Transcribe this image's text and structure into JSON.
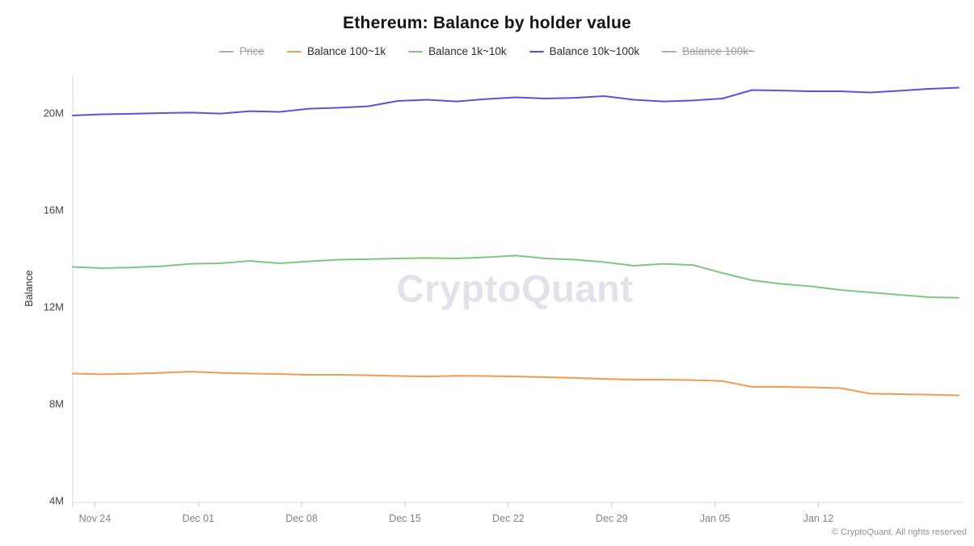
{
  "header": {
    "title": "Ethereum: Balance by holder value"
  },
  "legend": {
    "items": [
      {
        "label": "Price",
        "color": "#a7abb7",
        "disabled": true
      },
      {
        "label": "Balance 100~1k",
        "color": "#f19a54",
        "disabled": false
      },
      {
        "label": "Balance 1k~10k",
        "color": "#7dc87d",
        "disabled": false
      },
      {
        "label": "Balance 10k~100k",
        "color": "#5b50e0",
        "disabled": false
      },
      {
        "label": "Balance 100k~",
        "color": "#a7abb7",
        "disabled": true
      }
    ]
  },
  "watermark": {
    "text": "CryptoQuant"
  },
  "footer": {
    "text": "© CryptoQuant. All rights reserved"
  },
  "chart_data": {
    "type": "line",
    "title": "Ethereum: Balance by holder value",
    "ylabel": "Balance",
    "value_unit": "millions",
    "ylim": [
      3.9,
      21.5
    ],
    "y_ticks": [
      20,
      16,
      12,
      8,
      4
    ],
    "y_tick_suffix": "M",
    "grid": "off",
    "legend_position": "top",
    "x_span_days": 60,
    "point_interval_days": 2,
    "x_ticks": [
      {
        "label": "Nov 24",
        "day": 1.5
      },
      {
        "label": "Dec 01",
        "day": 8.5
      },
      {
        "label": "Dec 08",
        "day": 15.5
      },
      {
        "label": "Dec 15",
        "day": 22.5
      },
      {
        "label": "Dec 22",
        "day": 29.5
      },
      {
        "label": "Dec 29",
        "day": 36.5
      },
      {
        "label": "Jan 05",
        "day": 43.5
      },
      {
        "label": "Jan 12",
        "day": 50.5
      }
    ],
    "series": [
      {
        "name": "Balance 100~1k",
        "color": "#f19a54",
        "values": [
          9.25,
          9.22,
          9.24,
          9.28,
          9.33,
          9.28,
          9.25,
          9.23,
          9.2,
          9.2,
          9.18,
          9.15,
          9.13,
          9.16,
          9.15,
          9.13,
          9.1,
          9.07,
          9.03,
          9.0,
          9.0,
          8.98,
          8.94,
          8.7,
          8.7,
          8.68,
          8.65,
          8.42,
          8.4,
          8.38,
          8.35
        ]
      },
      {
        "name": "Balance 1k~10k",
        "color": "#7dc87d",
        "values": [
          13.65,
          13.6,
          13.63,
          13.68,
          13.78,
          13.8,
          13.9,
          13.8,
          13.88,
          13.95,
          13.97,
          14.0,
          14.02,
          14.0,
          14.05,
          14.12,
          14.0,
          13.95,
          13.85,
          13.7,
          13.78,
          13.73,
          13.4,
          13.1,
          12.95,
          12.85,
          12.7,
          12.6,
          12.5,
          12.4,
          12.38
        ]
      },
      {
        "name": "Balance 10k~100k",
        "color": "#5b50e0",
        "values": [
          19.9,
          19.95,
          19.97,
          20.0,
          20.02,
          19.98,
          20.08,
          20.05,
          20.18,
          20.22,
          20.28,
          20.5,
          20.55,
          20.48,
          20.58,
          20.65,
          20.6,
          20.63,
          20.7,
          20.55,
          20.48,
          20.52,
          20.6,
          20.95,
          20.93,
          20.9,
          20.9,
          20.85,
          20.92,
          21.0,
          21.05
        ]
      }
    ],
    "hidden_series": [
      "Price",
      "Balance 100k~"
    ]
  }
}
